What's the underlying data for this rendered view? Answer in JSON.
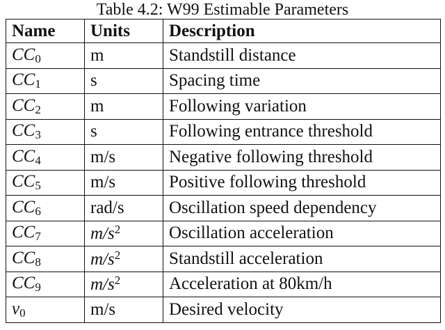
{
  "caption": "Table 4.2: W99 Estimable Parameters",
  "table": {
    "header": [
      "Name",
      "Units",
      "Description"
    ],
    "rows": [
      {
        "name": "CC",
        "sub": "0",
        "units": "m",
        "description": "Standstill distance"
      },
      {
        "name": "CC",
        "sub": "1",
        "units": "s",
        "description": "Spacing time"
      },
      {
        "name": "CC",
        "sub": "2",
        "units": "m",
        "description": "Following variation"
      },
      {
        "name": "CC",
        "sub": "3",
        "units": "s",
        "description": "Following entrance threshold"
      },
      {
        "name": "CC",
        "sub": "4",
        "units": "m/s",
        "description": "Negative following threshold"
      },
      {
        "name": "CC",
        "sub": "5",
        "units": "m/s",
        "description": "Positive following threshold"
      },
      {
        "name": "CC",
        "sub": "6",
        "units": "rad/s",
        "description": "Oscillation speed dependency"
      },
      {
        "name": "CC",
        "sub": "7",
        "units": "m/s",
        "units_sup": "2",
        "description": "Oscillation acceleration"
      },
      {
        "name": "CC",
        "sub": "8",
        "units": "m/s",
        "units_sup": "2",
        "description": "Standstill acceleration"
      },
      {
        "name": "CC",
        "sub": "9",
        "units": "m/s",
        "units_sup": "2",
        "description": "Acceleration at 80km/h"
      },
      {
        "name": "v",
        "sub": "0",
        "units": "m/s",
        "description": "Desired velocity"
      }
    ]
  }
}
